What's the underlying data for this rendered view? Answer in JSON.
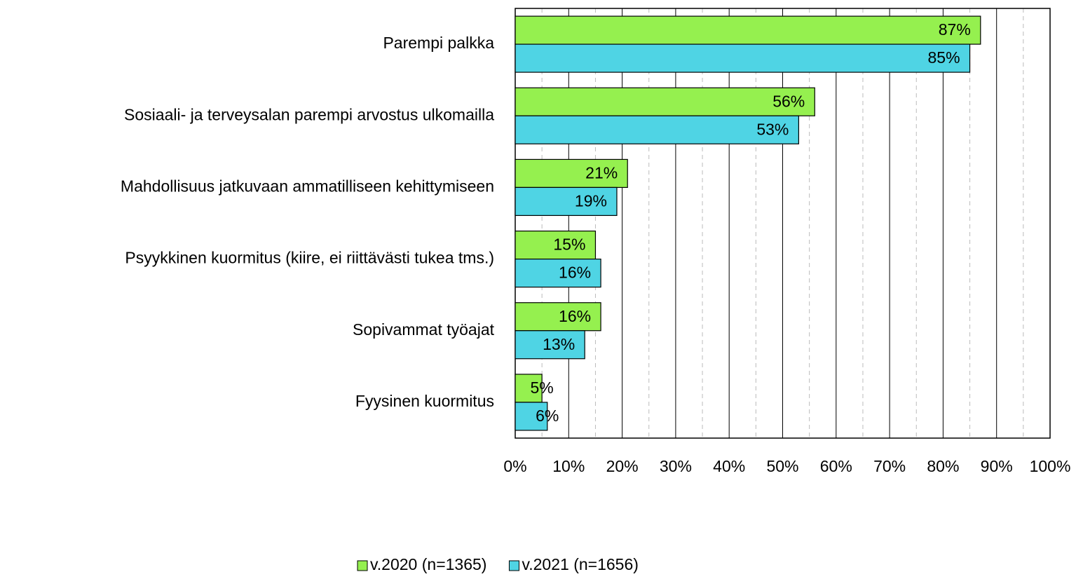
{
  "chart_data": {
    "type": "hbar",
    "categories": [
      "Parempi palkka",
      "Sosiaali- ja terveysalan parempi arvostus ulkomailla",
      "Mahdollisuus jatkuvaan ammatilliseen kehittymiseen",
      "Psyykkinen kuormitus (kiire, ei riittävästi tukea tms.)",
      "Sopivammat työajat",
      "Fyysinen kuormitus"
    ],
    "series": [
      {
        "name": "v.2020 (n=1365)",
        "color": "#95f04f",
        "values": [
          87,
          56,
          21,
          15,
          16,
          5
        ],
        "value_labels": [
          "87%",
          "56%",
          "21%",
          "15%",
          "16%",
          "5%"
        ]
      },
      {
        "name": "v.2021 (n=1656)",
        "color": "#4fd4e4",
        "values": [
          85,
          53,
          19,
          16,
          13,
          6
        ],
        "value_labels": [
          "85%",
          "53%",
          "19%",
          "16%",
          "13%",
          "6%"
        ]
      }
    ],
    "xlim": [
      0,
      100
    ],
    "xticks": [
      {
        "value": 0,
        "label": "0%"
      },
      {
        "value": 10,
        "label": "10%"
      },
      {
        "value": 20,
        "label": "20%"
      },
      {
        "value": 30,
        "label": "30%"
      },
      {
        "value": 40,
        "label": "40%"
      },
      {
        "value": 50,
        "label": "50%"
      },
      {
        "value": 60,
        "label": "60%"
      },
      {
        "value": 70,
        "label": "70%"
      },
      {
        "value": 80,
        "label": "80%"
      },
      {
        "value": 90,
        "label": "90%"
      },
      {
        "value": 100,
        "label": "100%"
      }
    ],
    "xminorticks": [
      5,
      15,
      25,
      35,
      45,
      55,
      65,
      75,
      85,
      95
    ],
    "grid": true,
    "legend": "bottom"
  }
}
